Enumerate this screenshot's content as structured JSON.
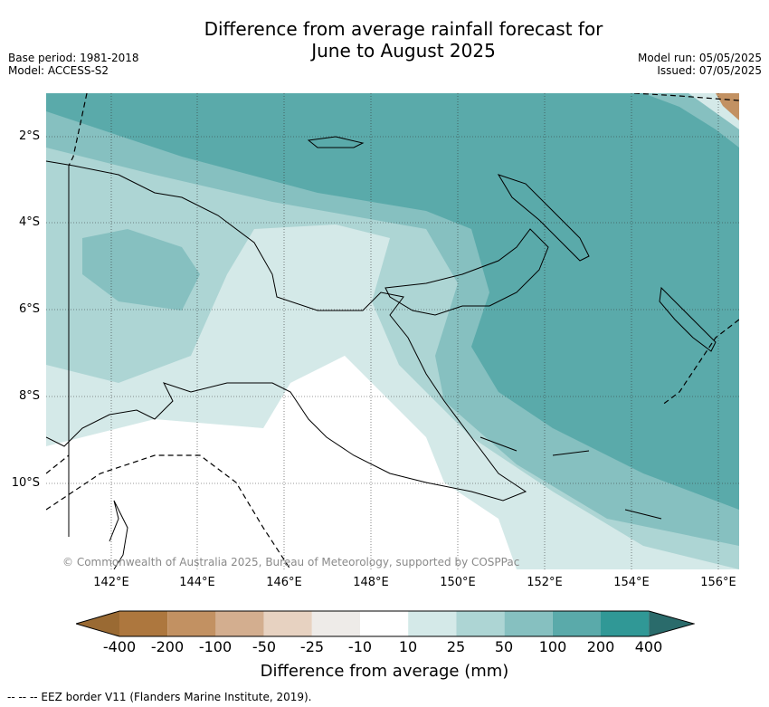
{
  "title_line1": "Difference from average rainfall forecast for",
  "title_line2": "June to August 2025",
  "meta_left": {
    "base_period": "Base period: 1981-2018",
    "model": "Model: ACCESS-S2"
  },
  "meta_right": {
    "model_run": "Model run: 05/05/2025",
    "issued": "Issued: 07/05/2025"
  },
  "map": {
    "lat_labels": [
      "2°S",
      "4°S",
      "6°S",
      "8°S",
      "10°S"
    ],
    "lon_labels": [
      "142°E",
      "144°E",
      "146°E",
      "148°E",
      "150°E",
      "152°E",
      "154°E",
      "156°E"
    ],
    "copyright": "© Commonwealth of Australia 2025, Bureau of Meteorology, supported by COSPPac"
  },
  "colorbar": {
    "title": "Difference from average (mm)",
    "ticks": [
      "-400",
      "-200",
      "-100",
      "-50",
      "-25",
      "-10",
      "10",
      "25",
      "50",
      "100",
      "200",
      "400"
    ],
    "colors": {
      "lt_neg400": "#9a6a33",
      "neg400_200": "#ad773e",
      "neg200_100": "#c29162",
      "neg100_50": "#d3ae8f",
      "neg50_25": "#e7d2c1",
      "neg25_10": "#eeebe8",
      "neg10_10": "#ffffff",
      "p10_25": "#d4e9e8",
      "p25_50": "#add5d4",
      "p50_100": "#86c0c0",
      "p100_200": "#5aaaaa",
      "p200_400": "#309896",
      "gt400": "#2a6b6b"
    }
  },
  "legend_note": "-- -- -- EEZ border V11 (Flanders Marine Institute, 2019)."
}
